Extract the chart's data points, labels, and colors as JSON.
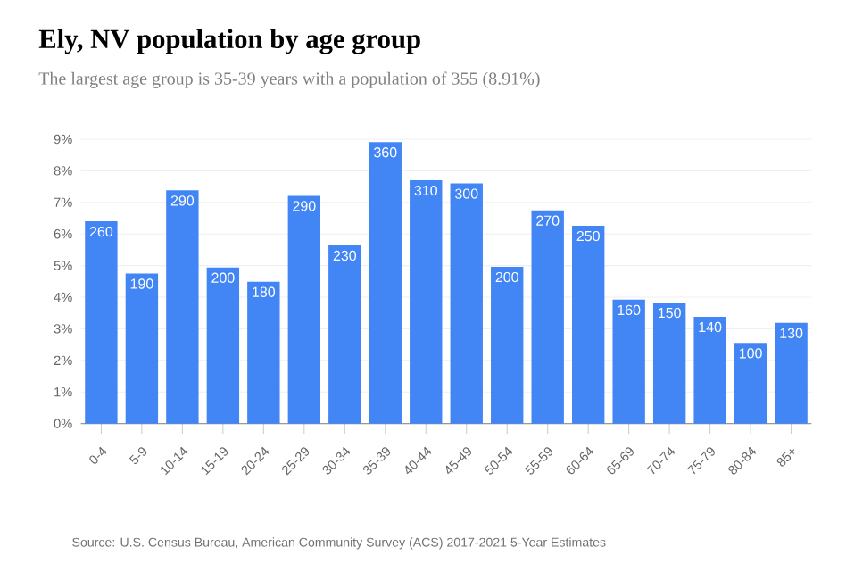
{
  "chart_data": {
    "type": "bar",
    "title": "Ely, NV population by age group",
    "subtitle": "The largest age group is 35-39 years with a population of 355 (8.91%)",
    "categories": [
      "0-4",
      "5-9",
      "10-14",
      "15-19",
      "20-24",
      "25-29",
      "30-34",
      "35-39",
      "40-44",
      "45-49",
      "50-54",
      "55-59",
      "60-64",
      "65-69",
      "70-74",
      "75-79",
      "80-84",
      "85+"
    ],
    "values": [
      6.4,
      4.75,
      7.38,
      4.94,
      4.49,
      7.21,
      5.64,
      8.91,
      7.7,
      7.6,
      4.96,
      6.75,
      6.26,
      3.92,
      3.83,
      3.38,
      2.55,
      3.19
    ],
    "color": "#4285f4",
    "ylim": [
      0,
      9
    ],
    "yticks": [
      {
        "value": 0,
        "label": "0%"
      },
      {
        "value": 1,
        "label": "1%"
      },
      {
        "value": 2,
        "label": "2%"
      },
      {
        "value": 3,
        "label": "3%"
      },
      {
        "value": 4,
        "label": "4%"
      },
      {
        "value": 5,
        "label": "5%"
      },
      {
        "value": 6,
        "label": "6%"
      },
      {
        "value": 7,
        "label": "7%"
      },
      {
        "value": 8,
        "label": "8%"
      },
      {
        "value": 9,
        "label": "9%"
      }
    ],
    "grid": "y",
    "annotations": [
      "Source: U.S. Census Bureau, American Community Survey (ACS) 2017-2021 5-Year Estimates",
      {
        "text": "260",
        "x": "0-4",
        "y": 6.4
      },
      {
        "text": "190",
        "x": "5-9",
        "y": 4.75
      },
      {
        "text": "290",
        "x": "10-14",
        "y": 7.38
      },
      {
        "text": "200",
        "x": "15-19",
        "y": 4.94
      },
      {
        "text": "180",
        "x": "20-24",
        "y": 4.49
      },
      {
        "text": "290",
        "x": "25-29",
        "y": 7.21
      },
      {
        "text": "230",
        "x": "30-34",
        "y": 5.64
      },
      {
        "text": "360",
        "x": "35-39",
        "y": 8.91
      },
      {
        "text": "310",
        "x": "40-44",
        "y": 7.7
      },
      {
        "text": "300",
        "x": "45-49",
        "y": 7.6
      },
      {
        "text": "200",
        "x": "50-54",
        "y": 4.96
      },
      {
        "text": "270",
        "x": "55-59",
        "y": 6.75
      },
      {
        "text": "250",
        "x": "60-64",
        "y": 6.26
      },
      {
        "text": "160",
        "x": "65-69",
        "y": 3.92
      },
      {
        "text": "150",
        "x": "70-74",
        "y": 3.83
      },
      {
        "text": "140",
        "x": "75-79",
        "y": 3.38
      },
      {
        "text": "100",
        "x": "80-84",
        "y": 2.55
      },
      {
        "text": "130",
        "x": "85+",
        "y": 3.19
      }
    ]
  }
}
